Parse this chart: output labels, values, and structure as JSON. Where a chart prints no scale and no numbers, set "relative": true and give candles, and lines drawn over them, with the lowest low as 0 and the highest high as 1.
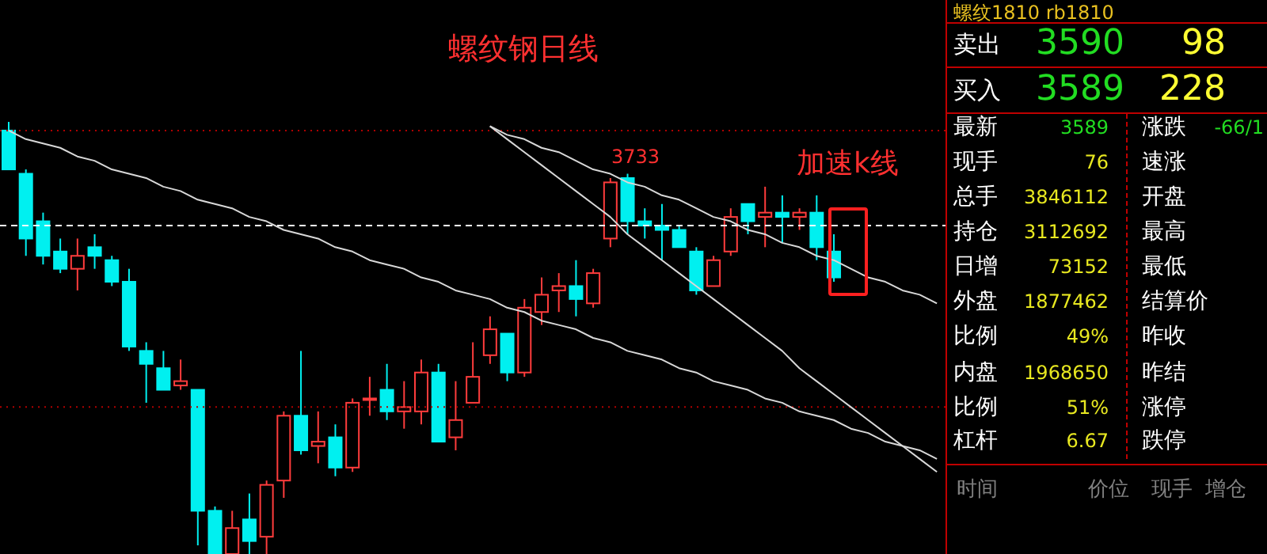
{
  "chart_data": [
    {
      "type": "candlestick",
      "title": "螺纹钢日线",
      "annotations": [
        "3733",
        "加速k线"
      ],
      "relative": true,
      "tick_labels": false,
      "grid": false,
      "legend": false,
      "marker": "none",
      "categories": [
        null,
        null,
        null,
        null,
        null,
        null,
        null,
        null,
        null,
        null,
        null,
        null,
        null,
        null,
        null,
        null,
        null,
        null,
        null,
        null,
        null,
        null,
        null,
        null,
        null,
        null,
        null,
        null,
        null,
        null,
        null,
        null,
        null,
        null,
        null,
        null,
        null,
        null,
        null,
        null,
        null,
        null,
        null,
        null,
        null,
        null,
        null,
        null,
        null,
        null,
        null,
        null,
        null,
        null,
        null
      ],
      "ohlc": [
        [
          0.98,
          1,
          0.89,
          0.89
        ],
        [
          0.88,
          0.89,
          0.69,
          0.73
        ],
        [
          0.77,
          0.79,
          0.67,
          0.69
        ],
        [
          0.7,
          0.73,
          0.65,
          0.66
        ],
        [
          0.66,
          0.73,
          0.61,
          0.69
        ],
        [
          0.71,
          0.74,
          0.66,
          0.69
        ],
        [
          0.68,
          0.69,
          0.62,
          0.63
        ],
        [
          0.63,
          0.66,
          0.47,
          0.48
        ],
        [
          0.47,
          0.49,
          0.35,
          0.44
        ],
        [
          0.43,
          0.47,
          0.38,
          0.38
        ],
        [
          0.39,
          0.45,
          0.38,
          0.4
        ],
        [
          0.38,
          0.38,
          0.02,
          0.1
        ],
        [
          0.1,
          0.11,
          0,
          0
        ],
        [
          0,
          0.1,
          0,
          0.06
        ],
        [
          0.08,
          0.14,
          0,
          0.03
        ],
        [
          0.04,
          0.17,
          0,
          0.16
        ],
        [
          0.17,
          0.33,
          0.13,
          0.32
        ],
        [
          0.32,
          0.47,
          0.23,
          0.24
        ],
        [
          0.25,
          0.33,
          0.21,
          0.26
        ],
        [
          0.27,
          0.3,
          0.18,
          0.2
        ],
        [
          0.2,
          0.36,
          0.19,
          0.35
        ],
        [
          0.36,
          0.41,
          0.32,
          0.36
        ],
        [
          0.38,
          0.44,
          0.31,
          0.33
        ],
        [
          0.33,
          0.4,
          0.29,
          0.34
        ],
        [
          0.33,
          0.45,
          0.3,
          0.42
        ],
        [
          0.42,
          0.44,
          0.26,
          0.26
        ],
        [
          0.27,
          0.4,
          0.24,
          0.31
        ],
        [
          0.35,
          0.49,
          0.35,
          0.41
        ],
        [
          0.46,
          0.55,
          0.44,
          0.52
        ],
        [
          0.51,
          0.51,
          0.4,
          0.42
        ],
        [
          0.42,
          0.59,
          0.41,
          0.57
        ],
        [
          0.56,
          0.64,
          0.53,
          0.6
        ],
        [
          0.61,
          0.65,
          0.56,
          0.62
        ],
        [
          0.62,
          0.68,
          0.55,
          0.59
        ],
        [
          0.58,
          0.66,
          0.57,
          0.65
        ],
        [
          0.73,
          0.87,
          0.71,
          0.86
        ],
        [
          0.87,
          0.88,
          0.74,
          0.77
        ],
        [
          0.77,
          0.8,
          0.73,
          0.76
        ],
        [
          0.76,
          0.81,
          0.68,
          0.75
        ],
        [
          0.75,
          0.76,
          0.71,
          0.71
        ],
        [
          0.7,
          0.71,
          0.6,
          0.61
        ],
        [
          0.62,
          0.69,
          0.62,
          0.68
        ],
        [
          0.7,
          0.8,
          0.69,
          0.78
        ],
        [
          0.81,
          0.81,
          0.74,
          0.77
        ],
        [
          0.78,
          0.85,
          0.71,
          0.79
        ],
        [
          0.79,
          0.83,
          0.72,
          0.78
        ],
        [
          0.78,
          0.8,
          0.75,
          0.79
        ],
        [
          0.79,
          0.83,
          0.68,
          0.71
        ],
        [
          0.7,
          0.74,
          0.63,
          0.64
        ],
        null,
        null,
        null,
        null,
        null,
        null
      ],
      "colors": [
        "#00f0f0",
        "#00f0f0",
        "#00f0f0",
        "#00f0f0",
        "#ff3c3c",
        "#00f0f0",
        "#00f0f0",
        "#00f0f0",
        "#00f0f0",
        "#00f0f0",
        "#ff3c3c",
        "#00f0f0",
        "#00f0f0",
        "#ff3c3c",
        "#00f0f0",
        "#ff3c3c",
        "#ff3c3c",
        "#00f0f0",
        "#ff3c3c",
        "#00f0f0",
        "#ff3c3c",
        "#ff3c3c",
        "#00f0f0",
        "#ff3c3c",
        "#ff3c3c",
        "#00f0f0",
        "#ff3c3c",
        "#ff3c3c",
        "#ff3c3c",
        "#00f0f0",
        "#ff3c3c",
        "#ff3c3c",
        "#ff3c3c",
        "#00f0f0",
        "#ff3c3c",
        "#ff3c3c",
        "#00f0f0",
        "#00f0f0",
        "#00f0f0",
        "#00f0f0",
        "#00f0f0",
        "#ff3c3c",
        "#ff3c3c",
        "#00f0f0",
        "#ff3c3c",
        "#00f0f0",
        "#ff3c3c",
        "#00f0f0",
        "#00f0f0",
        null,
        null,
        null,
        null,
        null,
        null
      ],
      "series": [
        {
          "type": "line",
          "color": "#d8d8d8",
          "values": [
            0.98,
            0.96,
            0.95,
            0.94,
            0.92,
            0.91,
            0.89,
            0.88,
            0.87,
            0.85,
            0.84,
            0.82,
            0.81,
            0.8,
            0.78,
            0.77,
            0.75,
            0.74,
            0.73,
            0.71,
            0.7,
            0.68,
            0.67,
            0.66,
            0.64,
            0.63,
            0.61,
            0.6,
            0.59,
            0.57,
            0.56,
            0.54,
            0.53,
            0.52,
            0.5,
            0.49,
            0.47,
            0.46,
            0.45,
            0.43,
            0.42,
            0.4,
            0.39,
            0.38,
            0.36,
            0.35,
            0.33,
            0.32,
            0.31,
            0.29,
            0.28,
            0.26,
            0.25,
            0.24,
            0.22
          ]
        },
        {
          "type": "line",
          "color": "#d8d8d8",
          "values": [
            null,
            null,
            null,
            null,
            null,
            null,
            null,
            null,
            null,
            null,
            null,
            null,
            null,
            null,
            null,
            null,
            null,
            null,
            null,
            null,
            null,
            null,
            null,
            null,
            null,
            null,
            null,
            null,
            0.99,
            0.97,
            0.96,
            0.94,
            0.93,
            0.91,
            0.89,
            0.88,
            0.86,
            0.85,
            0.83,
            0.82,
            0.8,
            0.78,
            0.77,
            0.75,
            0.74,
            0.72,
            0.71,
            0.69,
            0.68,
            0.66,
            0.64,
            0.63,
            0.61,
            0.6,
            0.58
          ]
        },
        {
          "type": "line",
          "color": "#d8d8d8",
          "values": [
            null,
            null,
            null,
            null,
            null,
            null,
            null,
            null,
            null,
            null,
            null,
            null,
            null,
            null,
            null,
            null,
            null,
            null,
            null,
            null,
            null,
            null,
            null,
            null,
            null,
            null,
            null,
            null,
            0.99,
            0.96,
            0.93,
            0.9,
            0.87,
            0.84,
            0.81,
            0.78,
            0.74,
            0.71,
            0.68,
            0.65,
            0.62,
            0.59,
            0.56,
            0.53,
            0.5,
            0.47,
            0.43,
            0.4,
            0.37,
            0.34,
            0.31,
            0.28,
            0.25,
            0.22,
            0.19
          ]
        }
      ],
      "ref_lines": [
        {
          "axis": "y",
          "value": 0.76,
          "color": "#ffffff",
          "line_style": "dashed"
        },
        {
          "axis": "y",
          "value": 0.98,
          "color": "#b00000",
          "line_style": "dotted"
        },
        {
          "axis": "y",
          "value": 0.34,
          "color": "#b00000",
          "line_style": "dotted"
        }
      ]
    },
    {
      "type": "other",
      "title": "螺纹1810  rb1810",
      "annotations": [
        "卖出",
        "3590",
        "98",
        "买入",
        "3589",
        "228",
        "最新",
        "3589",
        "现手",
        "76",
        "总手",
        "3846112",
        "持仓",
        "3112692",
        "日增",
        "73152",
        "外盘",
        "1877462",
        "比例",
        "49%",
        "内盘",
        "1968650",
        "比例",
        "51%",
        "杠杆",
        "6.67",
        "涨跌",
        "速涨",
        "开盘",
        "最高",
        "最低",
        "结算价",
        "昨收",
        "昨结",
        "涨停",
        "跌停",
        "-66/1",
        "时间",
        "价位",
        "现手",
        "增仓"
      ]
    }
  ]
}
